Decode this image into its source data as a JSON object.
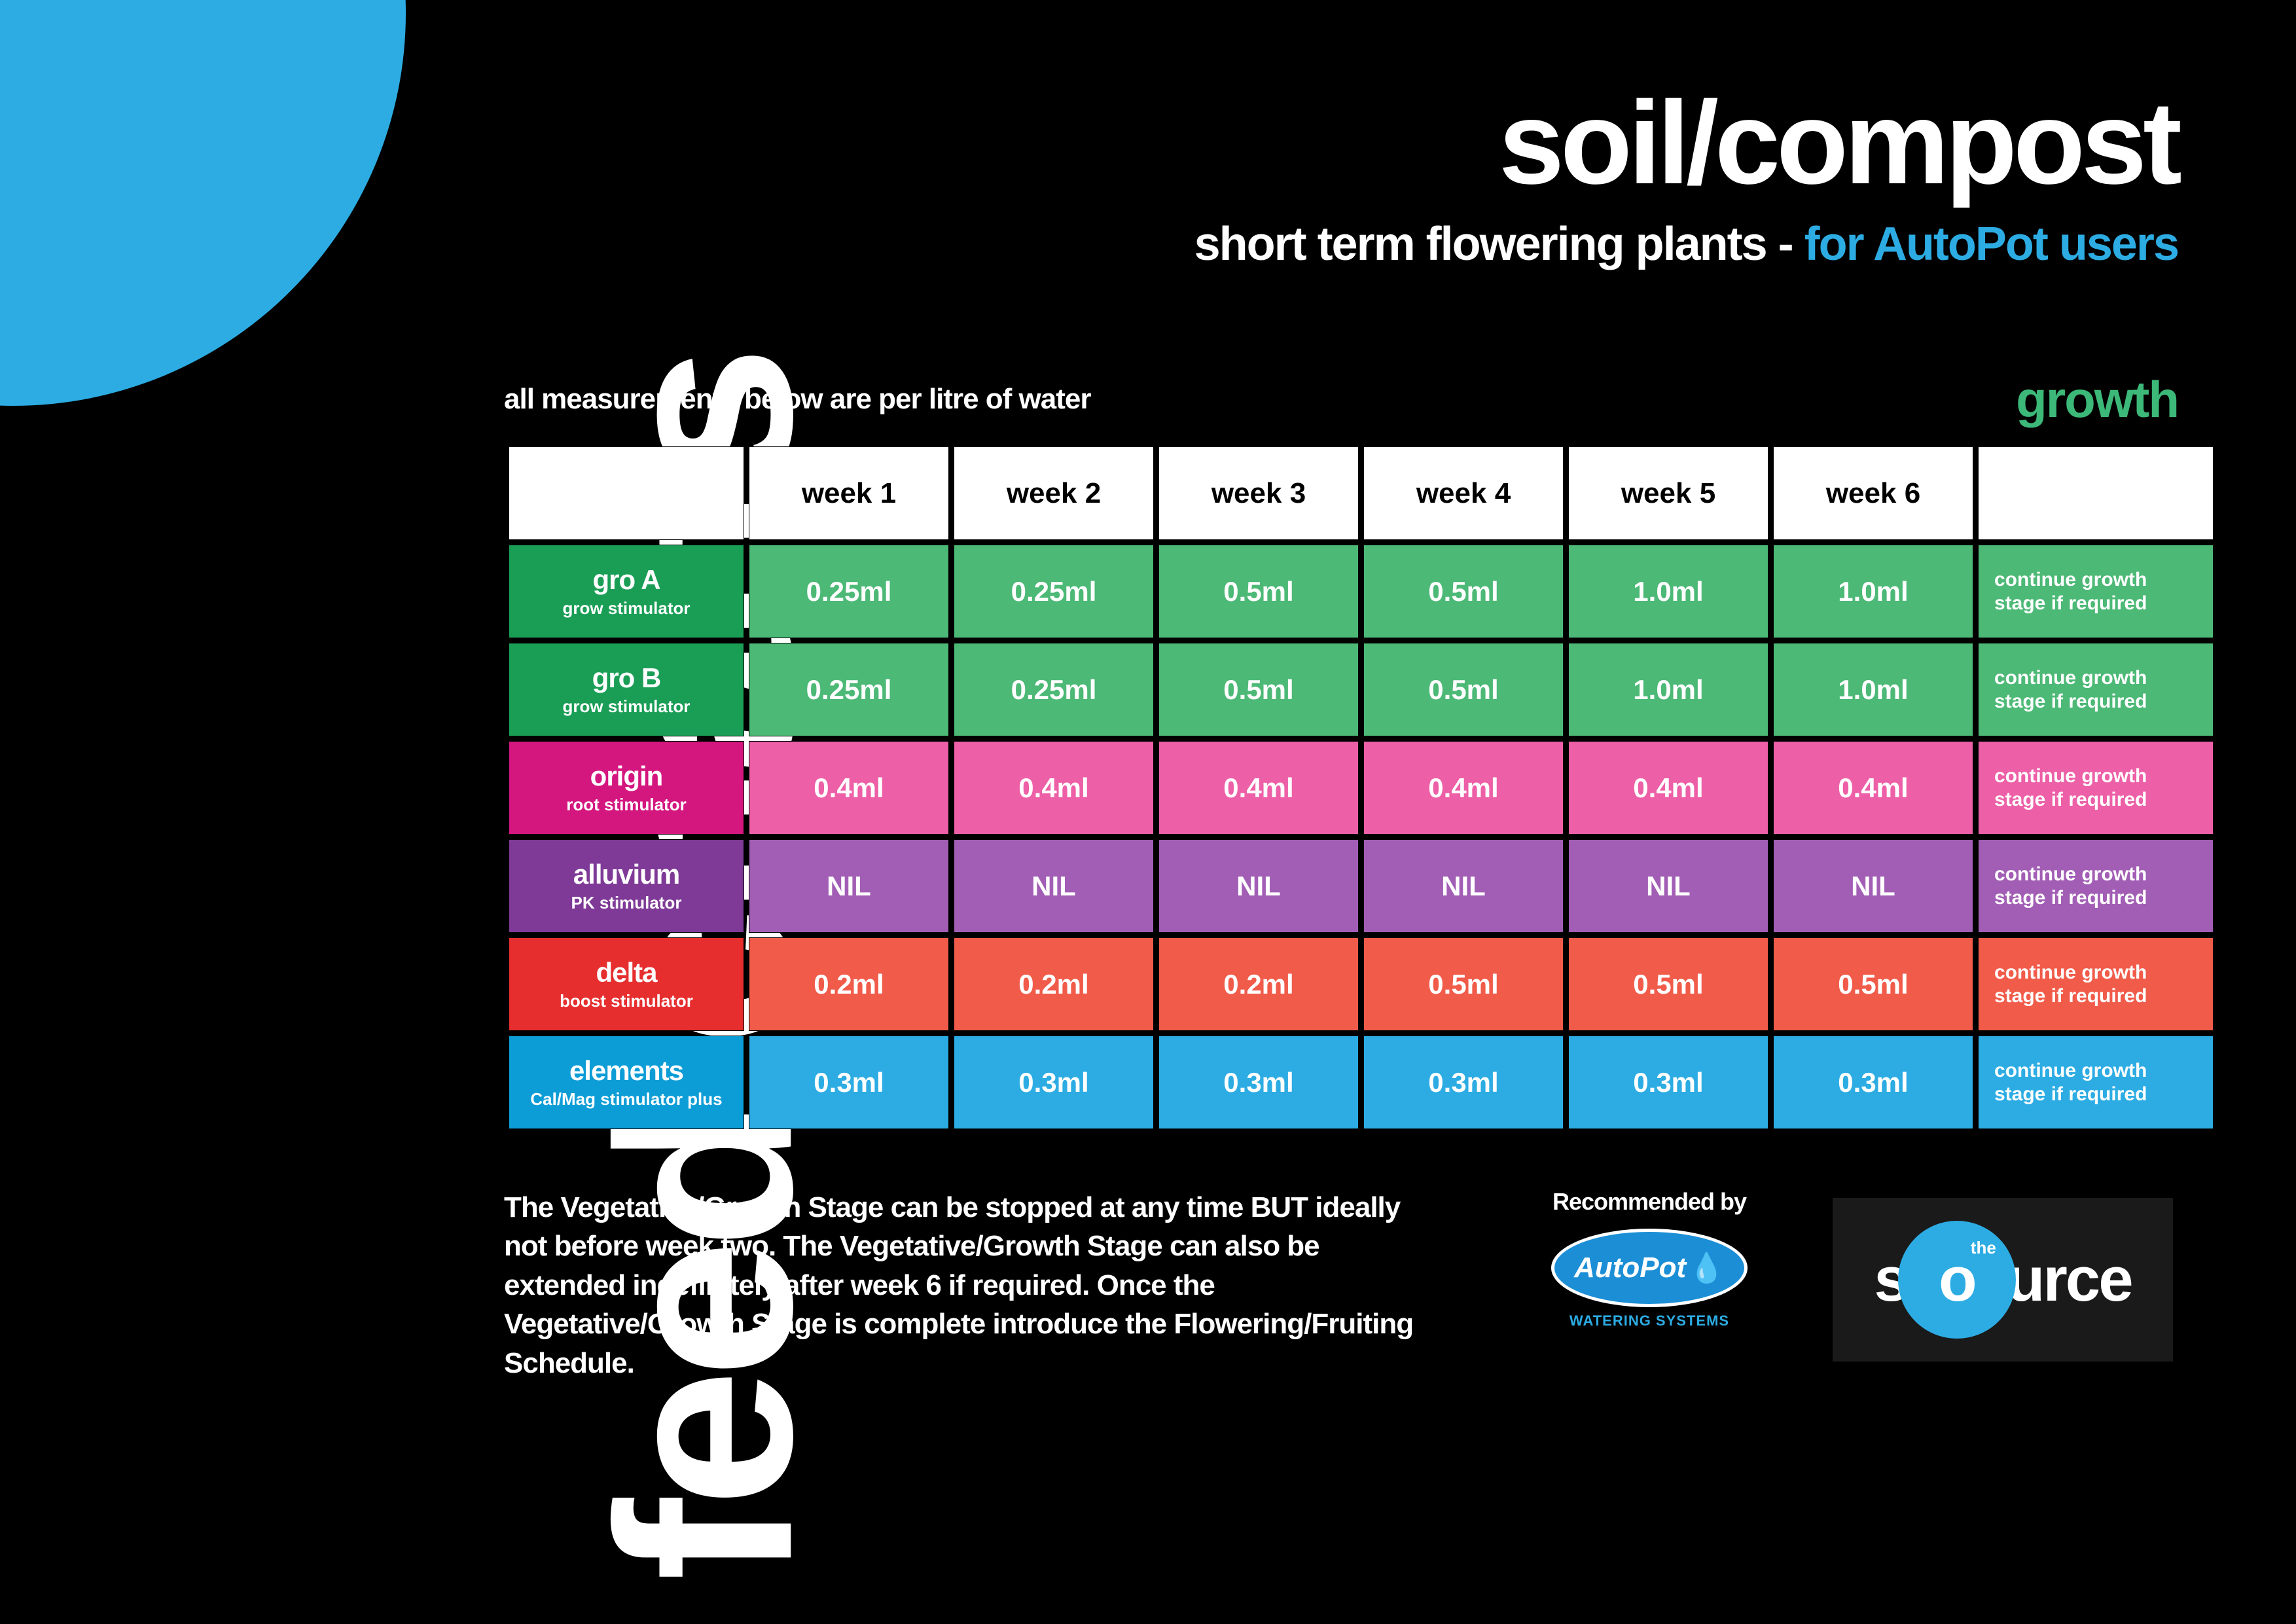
{
  "colors": {
    "background": "#000000",
    "accent_blue": "#2cace3",
    "green_stage": "#3cb878",
    "white": "#ffffff"
  },
  "side_title": "feed charts",
  "header": {
    "main_title": "soil/compost",
    "subtitle_prefix": "short term flowering plants - ",
    "subtitle_highlight": "for AutoPot users",
    "subtitle_highlight_color": "#2cace3"
  },
  "measurements_note": "all measurements below are per litre of water",
  "stage_label": "growth",
  "stage_color": "#3cb878",
  "table": {
    "weeks": [
      "week 1",
      "week 2",
      "week 3",
      "week 4",
      "week 5",
      "week 6"
    ],
    "rows": [
      {
        "name": "gro A",
        "desc": "grow stimulator",
        "label_color": "#1a9e56",
        "cell_color": "#4cb976",
        "values": [
          "0.25ml",
          "0.25ml",
          "0.5ml",
          "0.5ml",
          "1.0ml",
          "1.0ml"
        ],
        "note": "continue growth\nstage if required"
      },
      {
        "name": "gro B",
        "desc": "grow stimulator",
        "label_color": "#1a9e56",
        "cell_color": "#4cb976",
        "values": [
          "0.25ml",
          "0.25ml",
          "0.5ml",
          "0.5ml",
          "1.0ml",
          "1.0ml"
        ],
        "note": "continue growth\nstage if required"
      },
      {
        "name": "origin",
        "desc": "root stimulator",
        "label_color": "#d4167f",
        "cell_color": "#ed5fa7",
        "values": [
          "0.4ml",
          "0.4ml",
          "0.4ml",
          "0.4ml",
          "0.4ml",
          "0.4ml"
        ],
        "note": "continue growth\nstage if required"
      },
      {
        "name": "alluvium",
        "desc": "PK stimulator",
        "label_color": "#7e3a96",
        "cell_color": "#a25eb5",
        "values": [
          "NIL",
          "NIL",
          "NIL",
          "NIL",
          "NIL",
          "NIL"
        ],
        "note": "continue growth\nstage if required"
      },
      {
        "name": "delta",
        "desc": "boost stimulator",
        "label_color": "#e62e2e",
        "cell_color": "#f15b4a",
        "values": [
          "0.2ml",
          "0.2ml",
          "0.2ml",
          "0.5ml",
          "0.5ml",
          "0.5ml"
        ],
        "note": "continue growth\nstage if required"
      },
      {
        "name": "elements",
        "desc": "Cal/Mag stimulator plus",
        "label_color": "#0d9dd6",
        "cell_color": "#2cace3",
        "values": [
          "0.3ml",
          "0.3ml",
          "0.3ml",
          "0.3ml",
          "0.3ml",
          "0.3ml"
        ],
        "note": "continue growth\nstage if required"
      }
    ]
  },
  "footer_note": "The Vegetative/Growth Stage can be stopped at any time BUT ideally not before week two. The Vegetative/Growth Stage can also be extended indefinitely after week 6 if required. Once the Vegetative/Growth Stage is complete introduce the Flowering/Fruiting Schedule.",
  "recommended": {
    "label": "Recommended by",
    "logo_text": "AutoPot",
    "logo_tagline": "WATERING SYSTEMS",
    "logo_bg": "#1b8ed6",
    "logo_tag_color": "#2cace3"
  },
  "source_logo": {
    "prefix": "s",
    "circle_top": "the",
    "circle_letter": "o",
    "suffix": "urce",
    "circle_color": "#2cace3"
  }
}
